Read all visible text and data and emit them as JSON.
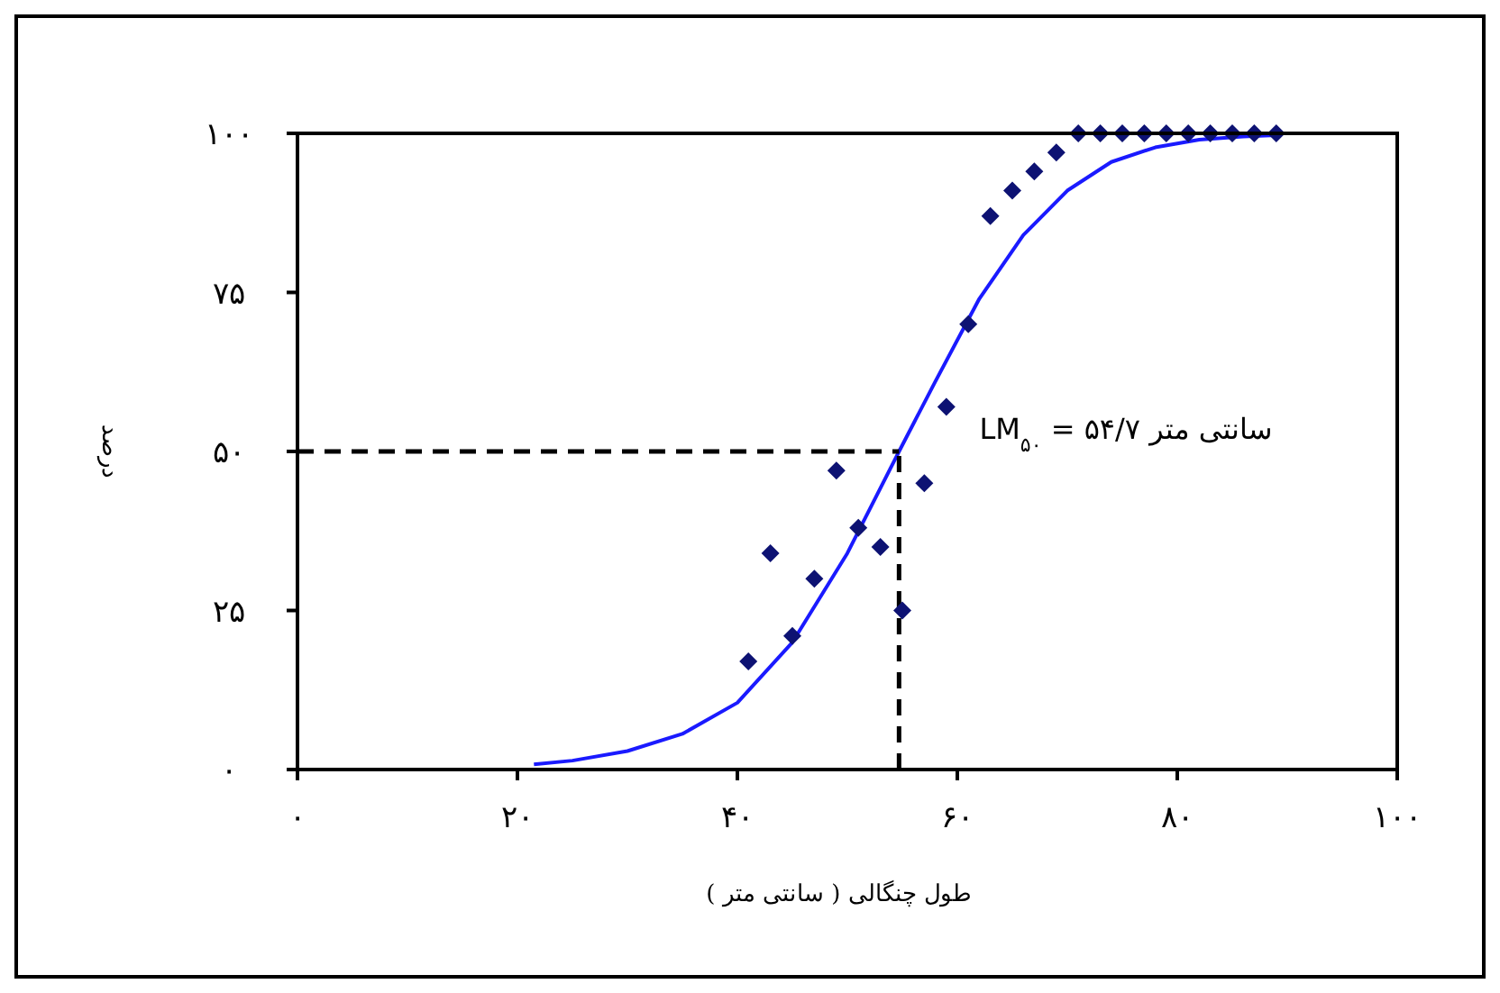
{
  "chart_data": {
    "type": "scatter",
    "xlabel": "طول چنگالی ( سانتی متر )",
    "ylabel": "درصد",
    "xlim": [
      0,
      100
    ],
    "ylim": [
      0,
      100
    ],
    "xticks": [
      {
        "value": 0,
        "label": "۰"
      },
      {
        "value": 20,
        "label": "۲۰"
      },
      {
        "value": 40,
        "label": "۴۰"
      },
      {
        "value": 60,
        "label": "۶۰"
      },
      {
        "value": 80,
        "label": "۸۰"
      },
      {
        "value": 100,
        "label": "۱۰۰"
      }
    ],
    "yticks": [
      {
        "value": 0,
        "label": "۰"
      },
      {
        "value": 25,
        "label": "۲۵"
      },
      {
        "value": 50,
        "label": "۵۰"
      },
      {
        "value": 75,
        "label": "۷۵"
      },
      {
        "value": 100,
        "label": "۱۰۰"
      }
    ],
    "grid": false,
    "marker": "diamond",
    "annotations": [
      "LM$_{۵۰}$ = ۵۴/۷ سانتی متر"
    ],
    "series": [
      {
        "color": "#0d1273",
        "x": [
          41,
          43,
          45,
          47,
          49,
          51,
          53,
          55,
          57,
          59,
          61,
          63,
          65,
          67,
          69,
          71,
          73,
          75,
          77,
          79,
          81,
          83,
          85,
          87,
          89
        ],
        "values": [
          17,
          34,
          21,
          30,
          47,
          38,
          35,
          25,
          45,
          57,
          70,
          87,
          91,
          94,
          97,
          100,
          100,
          100,
          100,
          100,
          100,
          100,
          100,
          100,
          100
        ]
      },
      {
        "type": "line",
        "color": "#1a1aff",
        "marker": "none",
        "line_style": "solid",
        "x": [
          21.5,
          25,
          30,
          35,
          40,
          45,
          50,
          54.7,
          58,
          62,
          66,
          70,
          74,
          78,
          82,
          86,
          89
        ],
        "values": [
          0.8,
          1.4,
          2.9,
          5.6,
          10.5,
          20,
          34,
          50,
          61,
          74,
          84,
          91,
          95.5,
          97.8,
          99,
          99.5,
          99.7
        ]
      },
      {
        "type": "line",
        "color": "#000000",
        "marker": "none",
        "line_style": "dashed",
        "x": [
          0,
          54.7
        ],
        "values": [
          50,
          50
        ]
      },
      {
        "type": "line",
        "color": "#000000",
        "marker": "none",
        "line_style": "dashed",
        "x": [
          54.7,
          54.7
        ],
        "values": [
          0,
          50
        ]
      }
    ]
  }
}
